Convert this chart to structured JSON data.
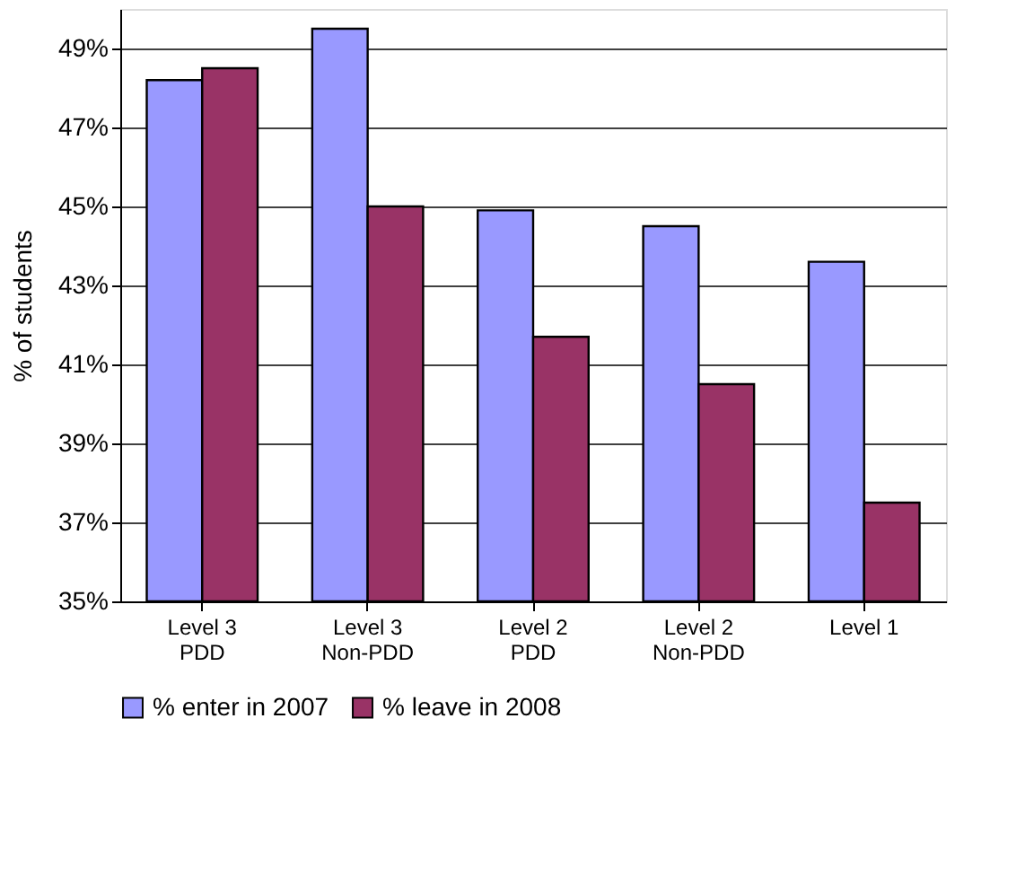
{
  "chart_data": {
    "type": "bar",
    "ylabel": "% of students",
    "categories": [
      "Level 3\nPDD",
      "Level 3\nNon-PDD",
      "Level 2\nPDD",
      "Level 2\nNon-PDD",
      "Level 1"
    ],
    "series": [
      {
        "name": "% enter in 2007",
        "color": "#9999ff",
        "values": [
          48.2,
          49.5,
          44.9,
          44.5,
          43.6
        ]
      },
      {
        "name": "% leave in 2008",
        "color": "#993366",
        "values": [
          48.5,
          45.0,
          41.7,
          40.5,
          37.5
        ]
      }
    ],
    "ylim": [
      35,
      50
    ],
    "yticks": [
      {
        "value": 35,
        "label": "35%"
      },
      {
        "value": 37,
        "label": "37%"
      },
      {
        "value": 39,
        "label": "39%"
      },
      {
        "value": 41,
        "label": "41%"
      },
      {
        "value": 43,
        "label": "43%"
      },
      {
        "value": 45,
        "label": "45%"
      },
      {
        "value": 47,
        "label": "47%"
      },
      {
        "value": 49,
        "label": "49%"
      }
    ],
    "grid": "y",
    "legend": "bottom"
  }
}
